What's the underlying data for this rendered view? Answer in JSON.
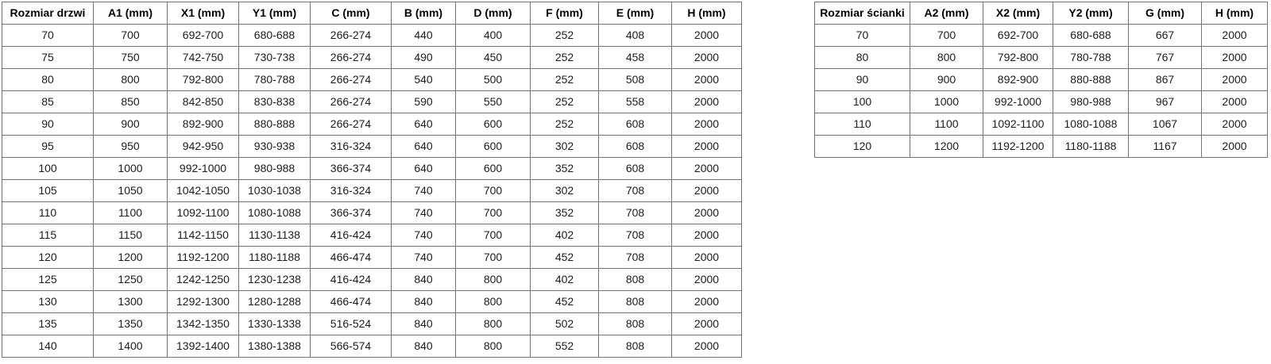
{
  "styles": {
    "background_color": "#ffffff",
    "border_color": "#75756a",
    "text_color": "#1c1c1c",
    "header_text_color": "#000000"
  },
  "door_table": {
    "headers": [
      "Rozmiar drzwi",
      "A1 (mm)",
      "X1 (mm)",
      "Y1 (mm)",
      "C (mm)",
      "B (mm)",
      "D (mm)",
      "F (mm)",
      "E (mm)",
      "H (mm)"
    ],
    "rows": [
      [
        "70",
        "700",
        "692-700",
        "680-688",
        "266-274",
        "440",
        "400",
        "252",
        "408",
        "2000"
      ],
      [
        "75",
        "750",
        "742-750",
        "730-738",
        "266-274",
        "490",
        "450",
        "252",
        "458",
        "2000"
      ],
      [
        "80",
        "800",
        "792-800",
        "780-788",
        "266-274",
        "540",
        "500",
        "252",
        "508",
        "2000"
      ],
      [
        "85",
        "850",
        "842-850",
        "830-838",
        "266-274",
        "590",
        "550",
        "252",
        "558",
        "2000"
      ],
      [
        "90",
        "900",
        "892-900",
        "880-888",
        "266-274",
        "640",
        "600",
        "252",
        "608",
        "2000"
      ],
      [
        "95",
        "950",
        "942-950",
        "930-938",
        "316-324",
        "640",
        "600",
        "302",
        "608",
        "2000"
      ],
      [
        "100",
        "1000",
        "992-1000",
        "980-988",
        "366-374",
        "640",
        "600",
        "352",
        "608",
        "2000"
      ],
      [
        "105",
        "1050",
        "1042-1050",
        "1030-1038",
        "316-324",
        "740",
        "700",
        "302",
        "708",
        "2000"
      ],
      [
        "110",
        "1100",
        "1092-1100",
        "1080-1088",
        "366-374",
        "740",
        "700",
        "352",
        "708",
        "2000"
      ],
      [
        "115",
        "1150",
        "1142-1150",
        "1130-1138",
        "416-424",
        "740",
        "700",
        "402",
        "708",
        "2000"
      ],
      [
        "120",
        "1200",
        "1192-1200",
        "1180-1188",
        "466-474",
        "740",
        "700",
        "452",
        "708",
        "2000"
      ],
      [
        "125",
        "1250",
        "1242-1250",
        "1230-1238",
        "416-424",
        "840",
        "800",
        "402",
        "808",
        "2000"
      ],
      [
        "130",
        "1300",
        "1292-1300",
        "1280-1288",
        "466-474",
        "840",
        "800",
        "452",
        "808",
        "2000"
      ],
      [
        "135",
        "1350",
        "1342-1350",
        "1330-1338",
        "516-524",
        "840",
        "800",
        "502",
        "808",
        "2000"
      ],
      [
        "140",
        "1400",
        "1392-1400",
        "1380-1388",
        "566-574",
        "840",
        "800",
        "552",
        "808",
        "2000"
      ]
    ]
  },
  "wall_table": {
    "headers": [
      "Rozmiar ścianki",
      "A2 (mm)",
      "X2 (mm)",
      "Y2 (mm)",
      "G (mm)",
      "H (mm)"
    ],
    "rows": [
      [
        "70",
        "700",
        "692-700",
        "680-688",
        "667",
        "2000"
      ],
      [
        "80",
        "800",
        "792-800",
        "780-788",
        "767",
        "2000"
      ],
      [
        "90",
        "900",
        "892-900",
        "880-888",
        "867",
        "2000"
      ],
      [
        "100",
        "1000",
        "992-1000",
        "980-988",
        "967",
        "2000"
      ],
      [
        "110",
        "1100",
        "1092-1100",
        "1080-1088",
        "1067",
        "2000"
      ],
      [
        "120",
        "1200",
        "1192-1200",
        "1180-1188",
        "1167",
        "2000"
      ]
    ]
  }
}
